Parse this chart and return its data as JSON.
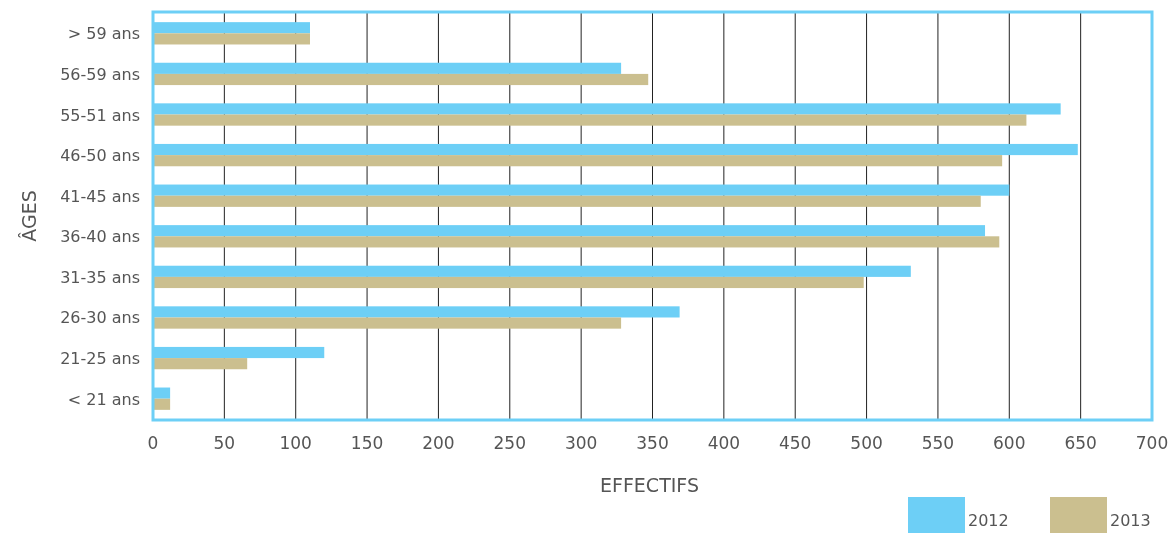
{
  "chart_data": {
    "type": "bar",
    "orientation": "horizontal",
    "xlabel": "EFFECTIFS",
    "ylabel": "ÂGES",
    "categories": [
      "> 59 ans",
      "56-59 ans",
      "55-51 ans",
      "46-50 ans",
      "41-45 ans",
      "36-40 ans",
      "31-35 ans",
      "26-30 ans",
      "21-25 ans",
      "< 21 ans"
    ],
    "series": [
      {
        "name": "2012",
        "color": "#6dcff6",
        "values": [
          110,
          328,
          636,
          648,
          600,
          583,
          531,
          369,
          120,
          12
        ]
      },
      {
        "name": "2013",
        "color": "#cbbf8f",
        "values": [
          110,
          347,
          612,
          595,
          580,
          593,
          498,
          328,
          66,
          12
        ]
      }
    ],
    "xlim": [
      0,
      700
    ],
    "xticks": [
      0,
      50,
      100,
      150,
      200,
      250,
      300,
      350,
      400,
      450,
      500,
      550,
      600,
      650,
      700
    ],
    "grid": "x",
    "legend": "bottom right"
  }
}
